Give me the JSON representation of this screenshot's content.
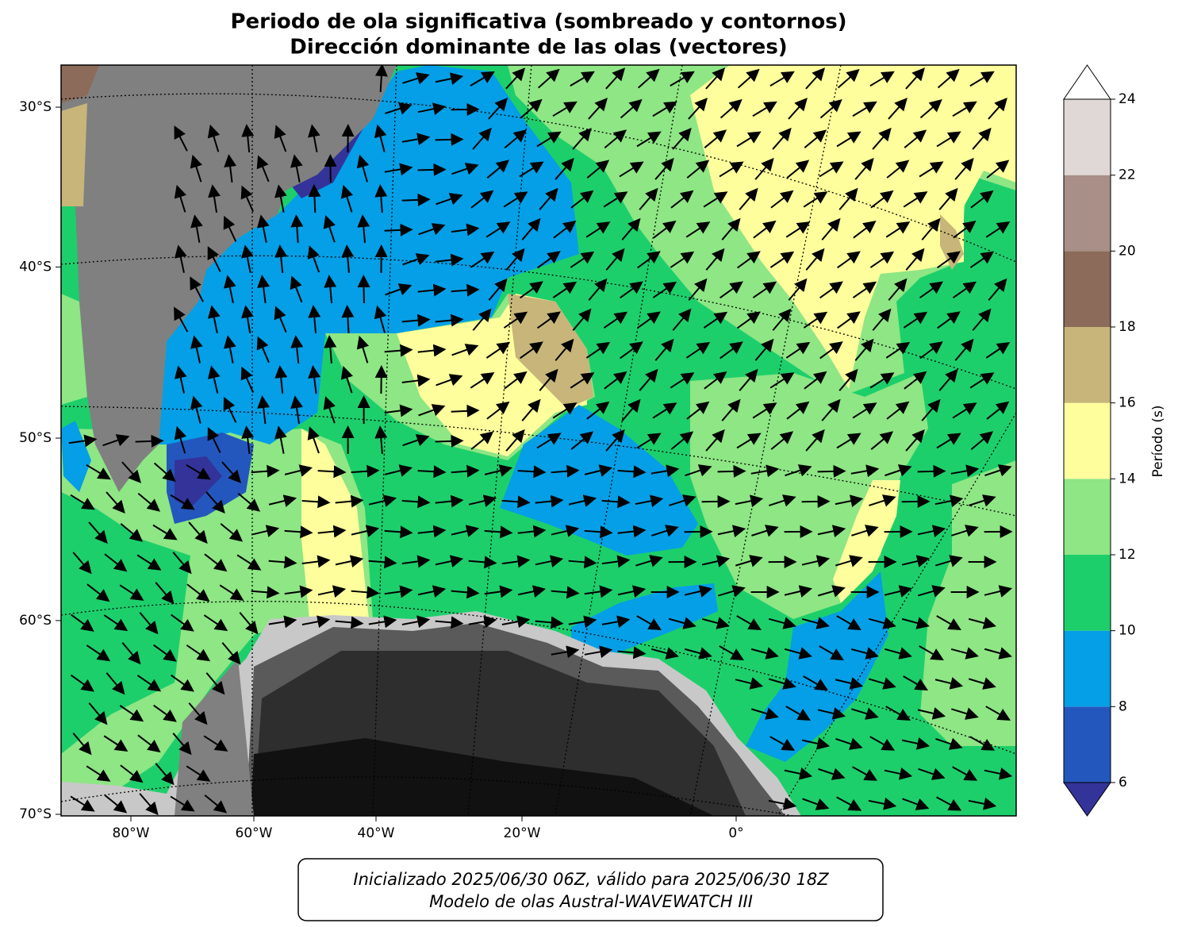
{
  "title": [
    "Periodo de ola significativa (sombreado y contornos)",
    "Dirección dominante de las olas (vectores)"
  ],
  "map": {
    "lat_labels": [
      {
        "value": -30,
        "label": "30°S"
      },
      {
        "value": -40,
        "label": "40°S"
      },
      {
        "value": -50,
        "label": "50°S"
      },
      {
        "value": -60,
        "label": "60°S"
      },
      {
        "value": -70,
        "label": "70°S"
      }
    ],
    "lon_labels": [
      {
        "value": -80,
        "label": "80°W"
      },
      {
        "value": -60,
        "label": "60°W"
      },
      {
        "value": -40,
        "label": "40°W"
      },
      {
        "value": -20,
        "label": "20°W"
      },
      {
        "value": 0,
        "label": "0°"
      }
    ]
  },
  "colorbar": {
    "label": "Período (s)",
    "ticks": [
      6,
      8,
      10,
      12,
      14,
      16,
      18,
      20,
      22,
      24
    ],
    "colors": [
      "#2457bd",
      "#049fe6",
      "#1dcf6b",
      "#8ee684",
      "#fefe9c",
      "#c7b57a",
      "#8c6b5a",
      "#a88f87",
      "#e0d8d6"
    ],
    "under_color": "#333399",
    "over_color": "#ffffff"
  },
  "footer": [
    "Inicializado 2025/06/30 06Z, válido para 2025/06/30 18Z",
    "Modelo de olas Austral-WAVEWATCH III"
  ]
}
